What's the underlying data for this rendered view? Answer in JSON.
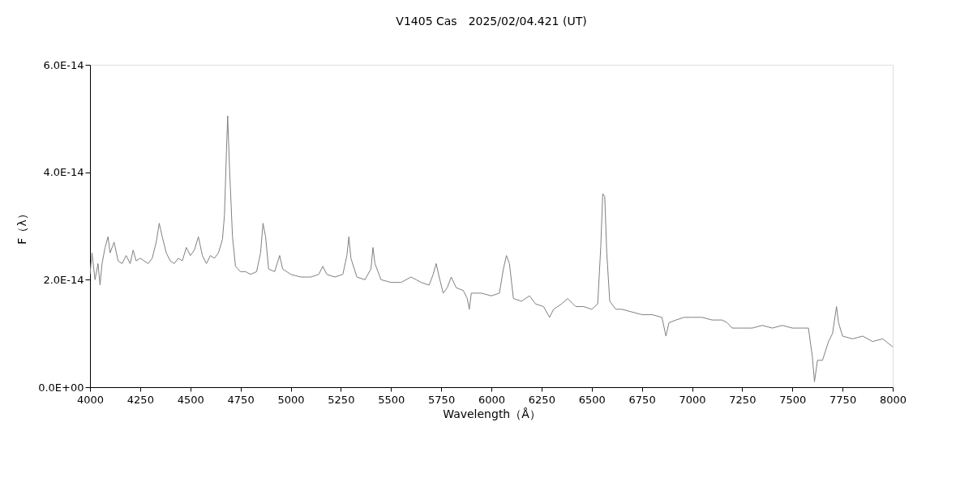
{
  "chart_data": {
    "type": "line",
    "title": "V1405 Cas　2025/02/04.421 (UT)",
    "xlabel": "Wavelength（Å）",
    "ylabel": "F（λ）",
    "x": [
      4000,
      4010,
      4025,
      4040,
      4050,
      4060,
      4075,
      4090,
      4100,
      4120,
      4140,
      4160,
      4180,
      4200,
      4215,
      4230,
      4250,
      4270,
      4290,
      4310,
      4330,
      4345,
      4360,
      4380,
      4400,
      4420,
      4440,
      4460,
      4480,
      4500,
      4520,
      4540,
      4560,
      4580,
      4600,
      4620,
      4640,
      4660,
      4670,
      4680,
      4686,
      4695,
      4710,
      4725,
      4750,
      4775,
      4800,
      4830,
      4850,
      4862,
      4875,
      4890,
      4920,
      4945,
      4960,
      5000,
      5050,
      5100,
      5140,
      5160,
      5180,
      5220,
      5260,
      5280,
      5290,
      5300,
      5330,
      5370,
      5400,
      5410,
      5420,
      5450,
      5500,
      5550,
      5600,
      5625,
      5650,
      5690,
      5710,
      5725,
      5740,
      5760,
      5780,
      5800,
      5825,
      5860,
      5880,
      5890,
      5900,
      5950,
      6000,
      6040,
      6060,
      6075,
      6090,
      6110,
      6150,
      6190,
      6220,
      6260,
      6290,
      6310,
      6350,
      6380,
      6420,
      6460,
      6500,
      6530,
      6545,
      6555,
      6565,
      6575,
      6590,
      6620,
      6650,
      6700,
      6750,
      6800,
      6850,
      6870,
      6885,
      6920,
      6960,
      7000,
      7050,
      7100,
      7150,
      7175,
      7200,
      7250,
      7300,
      7350,
      7400,
      7450,
      7500,
      7550,
      7580,
      7600,
      7610,
      7625,
      7650,
      7680,
      7700,
      7720,
      7730,
      7750,
      7800,
      7850,
      7900,
      7950,
      8000
    ],
    "series": [
      {
        "color": "#808080",
        "values": [
          2.1e-14,
          2.5e-14,
          2e-14,
          2.3e-14,
          1.9e-14,
          2.3e-14,
          2.6e-14,
          2.8e-14,
          2.5e-14,
          2.7e-14,
          2.35e-14,
          2.3e-14,
          2.45e-14,
          2.3e-14,
          2.55e-14,
          2.35e-14,
          2.4e-14,
          2.35e-14,
          2.3e-14,
          2.4e-14,
          2.7e-14,
          3.05e-14,
          2.8e-14,
          2.5e-14,
          2.35e-14,
          2.3e-14,
          2.4e-14,
          2.35e-14,
          2.6e-14,
          2.45e-14,
          2.55e-14,
          2.8e-14,
          2.45e-14,
          2.3e-14,
          2.45e-14,
          2.4e-14,
          2.5e-14,
          2.75e-14,
          3.2e-14,
          4.4e-14,
          5.05e-14,
          4.1e-14,
          2.8e-14,
          2.25e-14,
          2.15e-14,
          2.15e-14,
          2.1e-14,
          2.15e-14,
          2.5e-14,
          3.05e-14,
          2.8e-14,
          2.2e-14,
          2.15e-14,
          2.45e-14,
          2.2e-14,
          2.1e-14,
          2.05e-14,
          2.05e-14,
          2.1e-14,
          2.25e-14,
          2.1e-14,
          2.05e-14,
          2.1e-14,
          2.45e-14,
          2.8e-14,
          2.4e-14,
          2.05e-14,
          2e-14,
          2.2e-14,
          2.6e-14,
          2.3e-14,
          2e-14,
          1.95e-14,
          1.95e-14,
          2.05e-14,
          2e-14,
          1.95e-14,
          1.9e-14,
          2.1e-14,
          2.3e-14,
          2.05e-14,
          1.75e-14,
          1.85e-14,
          2.05e-14,
          1.85e-14,
          1.8e-14,
          1.65e-14,
          1.45e-14,
          1.75e-14,
          1.75e-14,
          1.7e-14,
          1.75e-14,
          2.2e-14,
          2.45e-14,
          2.3e-14,
          1.65e-14,
          1.6e-14,
          1.7e-14,
          1.55e-14,
          1.5e-14,
          1.3e-14,
          1.45e-14,
          1.55e-14,
          1.65e-14,
          1.5e-14,
          1.5e-14,
          1.45e-14,
          1.55e-14,
          2.6e-14,
          3.6e-14,
          3.55e-14,
          2.5e-14,
          1.6e-14,
          1.45e-14,
          1.45e-14,
          1.4e-14,
          1.35e-14,
          1.35e-14,
          1.3e-14,
          9.5e-15,
          1.2e-14,
          1.25e-14,
          1.3e-14,
          1.3e-14,
          1.3e-14,
          1.25e-14,
          1.25e-14,
          1.2e-14,
          1.1e-14,
          1.1e-14,
          1.1e-14,
          1.15e-14,
          1.1e-14,
          1.15e-14,
          1.1e-14,
          1.1e-14,
          1.1e-14,
          5.5e-15,
          1e-15,
          5e-15,
          5e-15,
          8.5e-15,
          1e-14,
          1.5e-14,
          1.2e-14,
          9.5e-15,
          9e-15,
          9.5e-15,
          8.5e-15,
          9e-15,
          7.5e-15
        ]
      }
    ],
    "xlim": [
      4000,
      8000
    ],
    "xticks": [
      4000,
      4250,
      4500,
      4750,
      5000,
      5250,
      5500,
      5750,
      6000,
      6250,
      6500,
      6750,
      7000,
      7250,
      7500,
      7750,
      8000
    ],
    "ylim": [
      0,
      6e-14
    ],
    "yticks": [
      {
        "value": 0,
        "label": "0.0E+00"
      },
      {
        "value": 2e-14,
        "label": "2.0E-14"
      },
      {
        "value": 4e-14,
        "label": "4.0E-14"
      },
      {
        "value": 6e-14,
        "label": "6.0E-14"
      }
    ],
    "grid": false,
    "marker": "none",
    "line_style": "solid"
  }
}
